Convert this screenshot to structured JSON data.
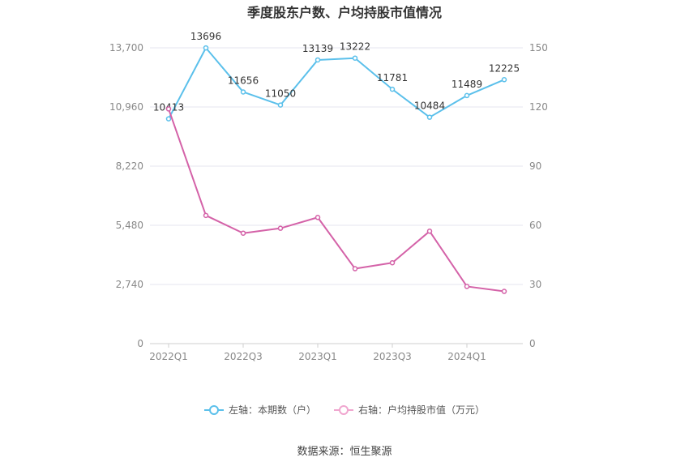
{
  "chart_data": {
    "type": "line",
    "title": "季度股东户数、户均持股市值情况",
    "x": [
      "2022Q1",
      "2022Q2",
      "2022Q3",
      "2022Q4",
      "2023Q1",
      "2023Q2",
      "2023Q3",
      "2023Q4",
      "2024Q1",
      "2024Q2"
    ],
    "x_tick_labels": [
      "2022Q1",
      "2022Q3",
      "2023Q1",
      "2023Q3",
      "2024Q1"
    ],
    "left_axis": {
      "ticks": [
        "0",
        "2,740",
        "5,480",
        "8,220",
        "10,960",
        "13,700"
      ],
      "ylim": [
        0,
        13700
      ]
    },
    "right_axis": {
      "ticks": [
        "0",
        "30",
        "60",
        "90",
        "120",
        "150"
      ],
      "ylim": [
        0,
        150
      ]
    },
    "grid": true,
    "legend_position": "bottom",
    "series": [
      {
        "name": "左轴：本期数（户）",
        "axis": "left",
        "color": "#5bc0eb",
        "values": [
          10413,
          13696,
          11656,
          11050,
          13139,
          13222,
          11781,
          10484,
          11489,
          12225
        ],
        "labels": [
          "10413",
          "13696",
          "11656",
          "11050",
          "13139",
          "13222",
          "11781",
          "10484",
          "11489",
          "12225"
        ]
      },
      {
        "name": "右轴：户均持股市值（万元）",
        "axis": "right",
        "color": "#d462a8",
        "values": [
          119,
          65,
          56,
          58.5,
          64,
          38,
          41,
          57,
          29,
          26.5
        ]
      }
    ]
  },
  "source": "数据来源：恒生聚源"
}
